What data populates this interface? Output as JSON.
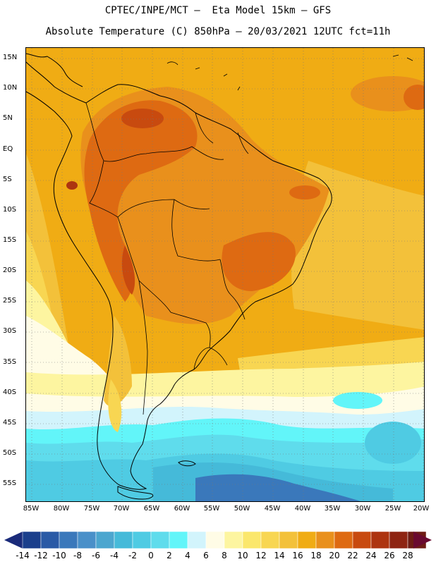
{
  "header": {
    "line1": "CPTEC/INPE/MCT –  Eta Model 15km – GFS",
    "line2": "Absolute Temperature (C) 850hPa – 20/03/2021 12UTC fct=11h"
  },
  "map": {
    "lat_labels": [
      "15N",
      "10N",
      "5N",
      "EQ",
      "5S",
      "10S",
      "15S",
      "20S",
      "25S",
      "30S",
      "35S",
      "40S",
      "45S",
      "50S",
      "55S"
    ],
    "lon_labels": [
      "85W",
      "80W",
      "75W",
      "70W",
      "65W",
      "60W",
      "55W",
      "50W",
      "45W",
      "40W",
      "35W",
      "30W",
      "25W",
      "20W"
    ]
  },
  "colorbar": {
    "labels": [
      "-14",
      "-12",
      "-10",
      "-8",
      "-6",
      "-4",
      "-2",
      "0",
      "2",
      "4",
      "6",
      "8",
      "10",
      "12",
      "14",
      "16",
      "18",
      "20",
      "22",
      "24",
      "26",
      "28"
    ],
    "colors": [
      "#1b3f8c",
      "#2a5aa6",
      "#3a78bb",
      "#4a90c9",
      "#4ca6cf",
      "#45bad9",
      "#4fcbe3",
      "#5fdcec",
      "#62f5f9",
      "#d2f4fc",
      "#fffce6",
      "#fdf5a0",
      "#fbe76c",
      "#f8d652",
      "#f3c13a",
      "#f0ac14",
      "#e9901c",
      "#de6a12",
      "#c84a0f",
      "#ad3410",
      "#8e2412",
      "#6e1c14"
    ],
    "low_arrow_color": "#1a2b7a",
    "high_arrow_color": "#6a0a30"
  }
}
